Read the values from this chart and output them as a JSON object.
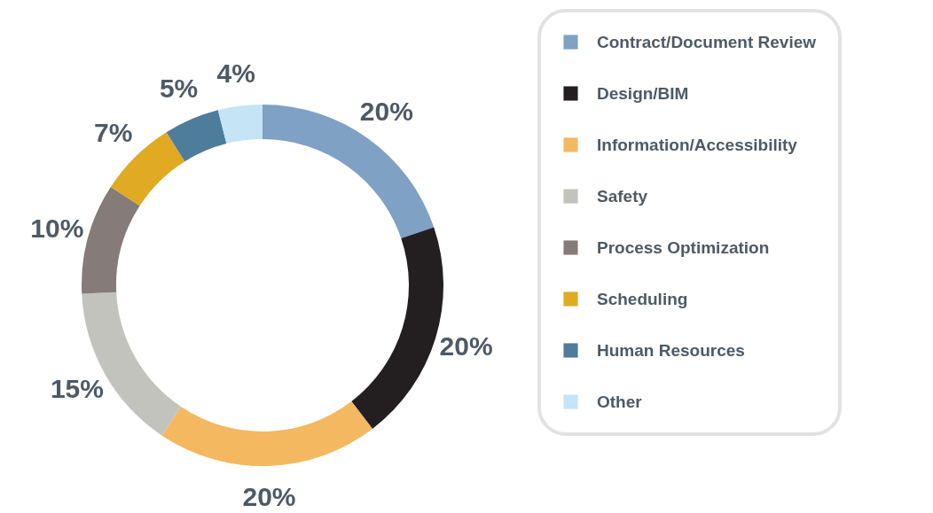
{
  "chart_data": {
    "type": "donut",
    "categories": [
      "Contract/Document Review",
      "Design/BIM",
      "Information/Accessibility",
      "Safety",
      "Process Optimization",
      "Scheduling",
      "Human Resources",
      "Other"
    ],
    "values": [
      20,
      20,
      20,
      15,
      10,
      7,
      5,
      4
    ],
    "value_labels": [
      "20%",
      "20%",
      "20%",
      "15%",
      "10%",
      "7%",
      "5%",
      "4%"
    ],
    "colors": [
      "#7fa1c3",
      "#231f20",
      "#f4b860",
      "#c3c3bd",
      "#857b78",
      "#e0aa23",
      "#4e7c9b",
      "#c5e4f5"
    ],
    "legend": "right"
  }
}
